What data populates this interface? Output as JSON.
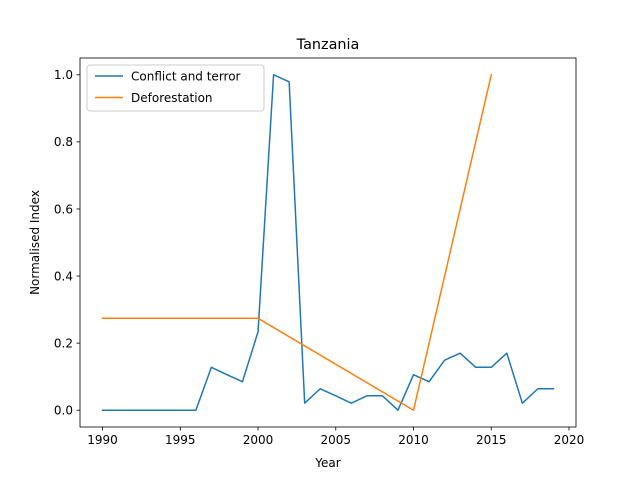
{
  "chart_data": {
    "type": "line",
    "title": "Tanzania",
    "xlabel": "Year",
    "ylabel": "Normalised Index",
    "xlim": [
      1988.55,
      2020.45
    ],
    "ylim": [
      -0.05,
      1.05
    ],
    "xticks": [
      1990,
      1995,
      2000,
      2005,
      2010,
      2015,
      2020
    ],
    "yticks": [
      0.0,
      0.2,
      0.4,
      0.6,
      0.8,
      1.0
    ],
    "xtick_labels": [
      "1990",
      "1995",
      "2000",
      "2005",
      "2010",
      "2015",
      "2020"
    ],
    "ytick_labels": [
      "0.0",
      "0.2",
      "0.4",
      "0.6",
      "0.8",
      "1.0"
    ],
    "grid": false,
    "legend_position": "upper left",
    "series": [
      {
        "name": "Conflict and terror",
        "color": "#1f77b4",
        "x": [
          1990,
          1991,
          1992,
          1993,
          1994,
          1995,
          1996,
          1997,
          1998,
          1999,
          2000,
          2001,
          2002,
          2003,
          2004,
          2005,
          2006,
          2007,
          2008,
          2009,
          2010,
          2011,
          2012,
          2013,
          2014,
          2015,
          2016,
          2017,
          2018,
          2019
        ],
        "y": [
          0.0,
          0.0,
          0.0,
          0.0,
          0.0,
          0.0,
          0.0,
          0.128,
          0.106,
          0.085,
          0.234,
          1.0,
          0.979,
          0.021,
          0.064,
          0.043,
          0.021,
          0.043,
          0.043,
          0.0,
          0.106,
          0.085,
          0.149,
          0.17,
          0.128,
          0.128,
          0.17,
          0.021,
          0.064,
          0.064
        ]
      },
      {
        "name": "Deforestation",
        "color": "#ff7f0e",
        "x": [
          1990,
          2000,
          2010,
          2015
        ],
        "y": [
          0.274,
          0.274,
          0.0,
          1.0
        ]
      }
    ]
  }
}
